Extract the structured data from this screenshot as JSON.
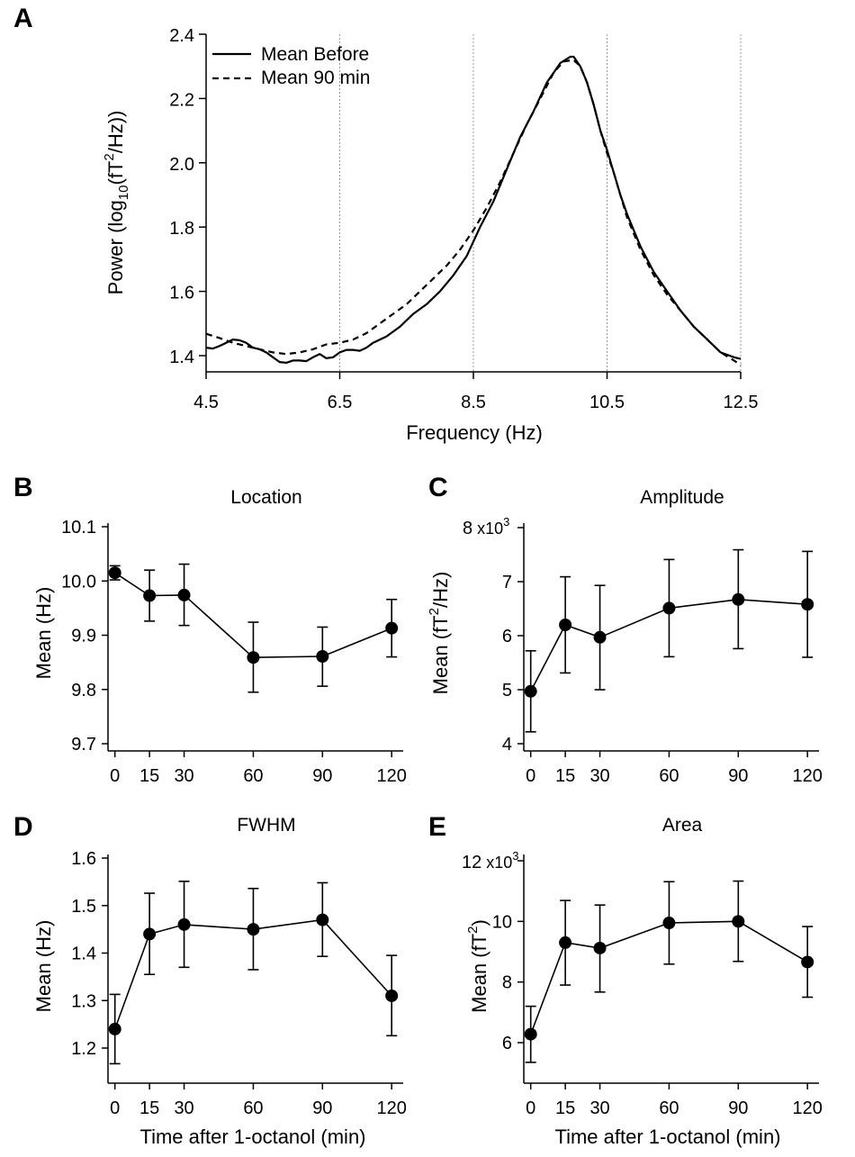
{
  "figure": {
    "panels": [
      "A",
      "B",
      "C",
      "D",
      "E"
    ]
  },
  "chart_data": [
    {
      "id": "A",
      "type": "line",
      "title": "",
      "xlabel": "Frequency (Hz)",
      "ylabel": "Power (log10(fT2/Hz))",
      "ylabel_parts": {
        "a": "Power (log",
        "sub": "10",
        "b": "(fT",
        "sup": "2",
        "c": "/Hz))"
      },
      "xlim": [
        4.5,
        12.5
      ],
      "ylim": [
        1.35,
        2.4
      ],
      "xticks": [
        "4.5",
        "6.5",
        "8.5",
        "10.5",
        "12.5"
      ],
      "xtick_values": [
        4.5,
        6.5,
        8.5,
        10.5,
        12.5
      ],
      "yticks": [
        "1.4",
        "1.6",
        "1.8",
        "2.0",
        "2.2",
        "2.4"
      ],
      "ytick_values": [
        1.4,
        1.6,
        1.8,
        2.0,
        2.2,
        2.4
      ],
      "grid": "vertical dotted",
      "legend_position": "top-left",
      "series": [
        {
          "name": "Mean Before",
          "style": "solid",
          "x": [
            4.5,
            4.6,
            4.7,
            4.8,
            4.9,
            5.0,
            5.1,
            5.2,
            5.3,
            5.4,
            5.5,
            5.6,
            5.7,
            5.8,
            5.9,
            6.0,
            6.1,
            6.2,
            6.3,
            6.4,
            6.5,
            6.6,
            6.7,
            6.8,
            6.9,
            7.0,
            7.2,
            7.4,
            7.6,
            7.8,
            8.0,
            8.2,
            8.4,
            8.6,
            8.8,
            9.0,
            9.2,
            9.4,
            9.6,
            9.8,
            9.95,
            10.0,
            10.1,
            10.2,
            10.3,
            10.4,
            10.5,
            10.6,
            10.7,
            10.8,
            11.0,
            11.2,
            11.4,
            11.6,
            11.8,
            12.0,
            12.2,
            12.4,
            12.5
          ],
          "y": [
            1.425,
            1.422,
            1.43,
            1.44,
            1.45,
            1.448,
            1.44,
            1.425,
            1.42,
            1.41,
            1.395,
            1.38,
            1.378,
            1.385,
            1.385,
            1.383,
            1.395,
            1.405,
            1.392,
            1.395,
            1.41,
            1.418,
            1.418,
            1.415,
            1.425,
            1.44,
            1.46,
            1.49,
            1.53,
            1.56,
            1.6,
            1.65,
            1.71,
            1.8,
            1.88,
            1.98,
            2.08,
            2.16,
            2.25,
            2.31,
            2.33,
            2.33,
            2.3,
            2.25,
            2.18,
            2.1,
            2.04,
            1.97,
            1.9,
            1.84,
            1.74,
            1.66,
            1.6,
            1.54,
            1.49,
            1.45,
            1.41,
            1.395,
            1.39
          ]
        },
        {
          "name": "Mean 90 min",
          "style": "dashed",
          "x": [
            4.5,
            4.7,
            4.9,
            5.1,
            5.3,
            5.5,
            5.7,
            5.9,
            6.1,
            6.3,
            6.5,
            6.7,
            6.9,
            7.1,
            7.3,
            7.5,
            7.7,
            7.9,
            8.1,
            8.3,
            8.5,
            8.7,
            8.9,
            9.1,
            9.3,
            9.5,
            9.7,
            9.85,
            10.0,
            10.1,
            10.2,
            10.3,
            10.4,
            10.5,
            10.6,
            10.7,
            10.8,
            11.0,
            11.2,
            11.4,
            11.6,
            11.8,
            12.0,
            12.2,
            12.4,
            12.5
          ],
          "y": [
            1.468,
            1.455,
            1.44,
            1.43,
            1.42,
            1.41,
            1.405,
            1.41,
            1.42,
            1.435,
            1.44,
            1.45,
            1.47,
            1.5,
            1.53,
            1.56,
            1.6,
            1.64,
            1.68,
            1.73,
            1.79,
            1.86,
            1.94,
            2.03,
            2.12,
            2.2,
            2.28,
            2.315,
            2.32,
            2.3,
            2.25,
            2.18,
            2.1,
            2.03,
            1.97,
            1.9,
            1.83,
            1.73,
            1.65,
            1.59,
            1.54,
            1.49,
            1.45,
            1.41,
            1.385,
            1.37
          ]
        }
      ]
    },
    {
      "id": "B",
      "type": "line",
      "title": "Location",
      "xlabel": "",
      "ylabel": "Mean (Hz)",
      "x": [
        0,
        15,
        30,
        60,
        90,
        120
      ],
      "values": [
        10.015,
        9.973,
        9.974,
        9.859,
        9.861,
        9.913
      ],
      "err_low": [
        10.002,
        9.926,
        9.918,
        9.795,
        9.806,
        9.86
      ],
      "err_high": [
        10.028,
        10.02,
        10.031,
        9.924,
        9.915,
        9.966
      ],
      "xlim": [
        -3,
        125
      ],
      "ylim": [
        9.69,
        10.11
      ],
      "xticks": [
        "0",
        "15",
        "30",
        "60",
        "90",
        "120"
      ],
      "yticks": [
        "9.7",
        "9.8",
        "9.9",
        "10.0",
        "10.1"
      ],
      "ytick_values": [
        9.7,
        9.8,
        9.9,
        10.0,
        10.1
      ]
    },
    {
      "id": "C",
      "type": "line",
      "title": "Amplitude",
      "xlabel": "",
      "ylabel": "Mean (fT2/Hz)",
      "ylabel_parts": {
        "a": "Mean (fT",
        "sup": "2",
        "c": "/Hz)"
      },
      "multiplier": "x10",
      "multiplier_exp": "3",
      "x": [
        0,
        15,
        30,
        60,
        90,
        120
      ],
      "values": [
        4.97,
        6.2,
        5.97,
        6.51,
        6.67,
        6.58
      ],
      "err_low": [
        4.22,
        5.31,
        5.0,
        5.61,
        5.76,
        5.6
      ],
      "err_high": [
        5.72,
        7.09,
        6.93,
        7.41,
        7.59,
        7.56
      ],
      "xlim": [
        -3,
        125
      ],
      "ylim": [
        3.75,
        8.2
      ],
      "xticks": [
        "0",
        "15",
        "30",
        "60",
        "90",
        "120"
      ],
      "yticks": [
        "4",
        "5",
        "6",
        "7",
        "8"
      ],
      "ytick_values": [
        4,
        5,
        6,
        7,
        8
      ]
    },
    {
      "id": "D",
      "type": "line",
      "title": "FWHM",
      "xlabel": "Time after 1-octanol (min)",
      "ylabel": "Mean (Hz)",
      "x": [
        0,
        15,
        30,
        60,
        90,
        120
      ],
      "values": [
        1.24,
        1.44,
        1.46,
        1.45,
        1.47,
        1.31
      ],
      "err_low": [
        1.167,
        1.355,
        1.37,
        1.365,
        1.393,
        1.226
      ],
      "err_high": [
        1.313,
        1.526,
        1.551,
        1.536,
        1.548,
        1.395
      ],
      "xlim": [
        -3,
        125
      ],
      "ylim": [
        1.16,
        1.6
      ],
      "xticks": [
        "0",
        "15",
        "30",
        "60",
        "90",
        "120"
      ],
      "yticks": [
        "1.2",
        "1.3",
        "1.4",
        "1.5",
        "1.6"
      ],
      "ytick_values": [
        1.2,
        1.3,
        1.4,
        1.5,
        1.6
      ]
    },
    {
      "id": "E",
      "type": "line",
      "title": "Area",
      "xlabel": "Time after 1-octanol (min)",
      "ylabel": "Mean (fT2)",
      "ylabel_parts": {
        "a": "Mean (fT",
        "sup": "2",
        "c": ")"
      },
      "multiplier": "x10",
      "multiplier_exp": "3",
      "x": [
        0,
        15,
        30,
        60,
        90,
        120
      ],
      "values": [
        6.28,
        9.3,
        9.12,
        9.95,
        10.0,
        8.66
      ],
      "err_low": [
        5.35,
        7.9,
        7.67,
        8.59,
        8.68,
        7.5
      ],
      "err_high": [
        7.2,
        10.69,
        10.54,
        11.31,
        11.33,
        9.83
      ],
      "xlim": [
        -3,
        125
      ],
      "ylim": [
        4.95,
        12.0
      ],
      "xticks": [
        "0",
        "15",
        "30",
        "60",
        "90",
        "120"
      ],
      "yticks": [
        "6",
        "8",
        "10",
        "12"
      ],
      "ytick_values": [
        6,
        8,
        10,
        12
      ]
    }
  ]
}
